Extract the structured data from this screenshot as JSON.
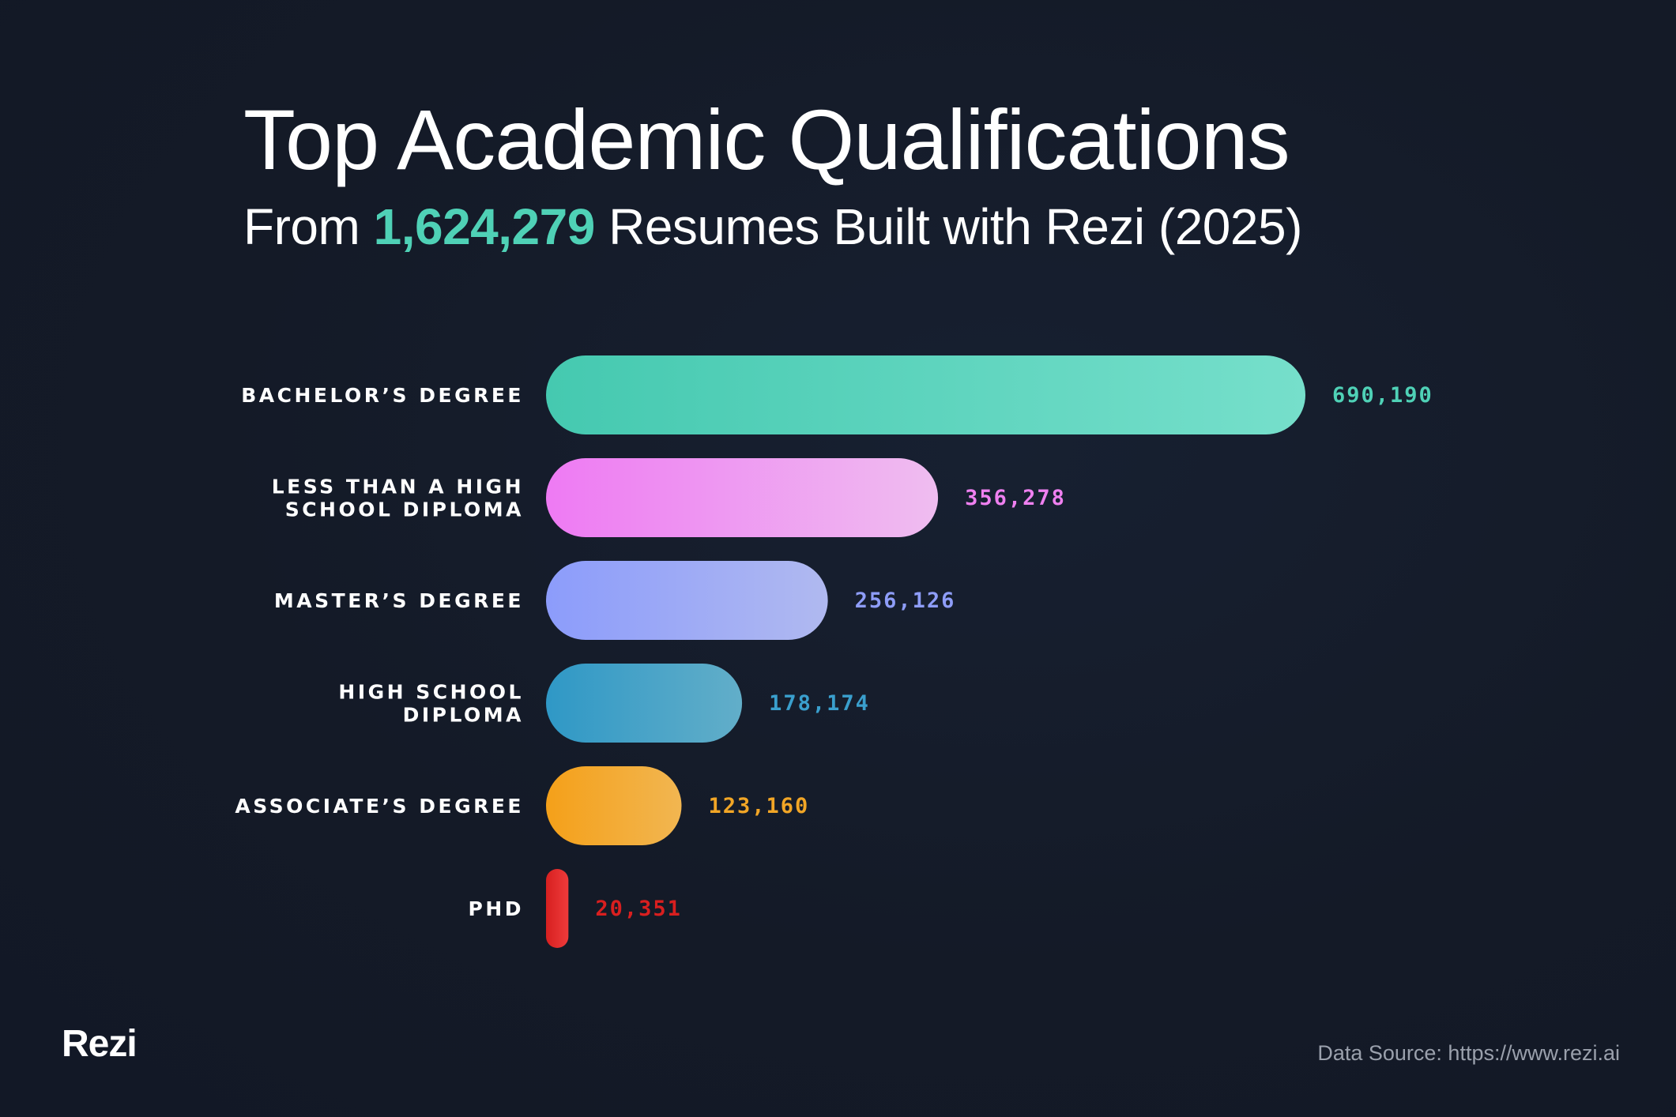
{
  "header": {
    "title": "Top Academic Qualifications",
    "subtitle_prefix": "From",
    "subtitle_highlight": "1,624,279",
    "subtitle_suffix": "Resumes Built with Rezi (2025)"
  },
  "footer": {
    "logo": "Rezi",
    "source": "Data Source: https://www.rezi.ai"
  },
  "colors": {
    "background": "#141a27",
    "accent": "#4fd1b6"
  },
  "chart_data": {
    "type": "bar",
    "orientation": "horizontal",
    "categories": [
      [
        "BACHELOR’S DEGREE"
      ],
      [
        "LESS THAN A HIGH",
        "SCHOOL DIPLOMA"
      ],
      [
        "MASTER’S DEGREE"
      ],
      [
        "HIGH SCHOOL",
        "DIPLOMA"
      ],
      [
        "ASSOCIATE’S DEGREE"
      ],
      [
        "PHD"
      ]
    ],
    "values": [
      690190,
      356278,
      256126,
      178174,
      123160,
      20351
    ],
    "value_labels": [
      "690,190",
      "356,278",
      "256,126",
      "178,174",
      "123,160",
      "20,351"
    ],
    "bar_colors": [
      [
        "#45c9b0",
        "#76dfcb"
      ],
      [
        "#ee7af3",
        "#efbdf0"
      ],
      [
        "#8c9cfb",
        "#b0b9f0"
      ],
      [
        "#2f98c6",
        "#62aec9"
      ],
      [
        "#f4a019",
        "#f2b651"
      ],
      [
        "#d72020",
        "#ef3b3b"
      ]
    ],
    "label_colors": [
      "#4fd1b6",
      "#ef80f0",
      "#8e9df8",
      "#3a9fcd",
      "#f2a626",
      "#d91f1f"
    ],
    "grid": false,
    "legend": "none"
  }
}
